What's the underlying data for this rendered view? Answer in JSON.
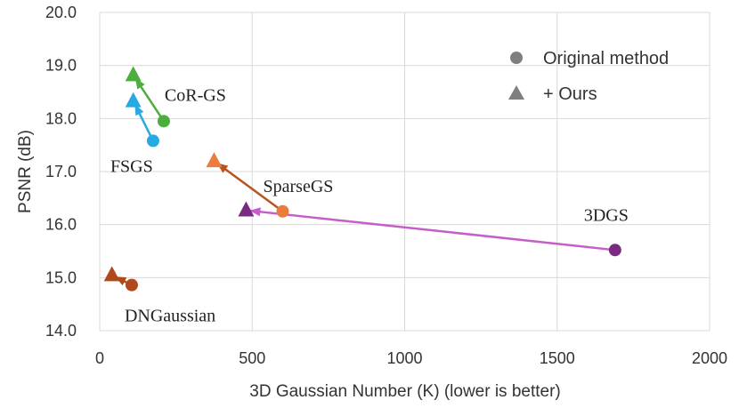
{
  "chart_data": {
    "type": "scatter",
    "title": "",
    "xlabel": "3D Gaussian Number (K) (lower is better)",
    "ylabel": "PSNR (dB)",
    "xlim": [
      0,
      2000
    ],
    "ylim": [
      14.0,
      20.0
    ],
    "x_ticks": [
      "0",
      "500",
      "1000",
      "1500",
      "2000"
    ],
    "y_ticks": [
      "14.0",
      "15.0",
      "16.0",
      "17.0",
      "18.0",
      "19.0",
      "20.0"
    ],
    "grid": true,
    "legend_position": "top-right",
    "legend": [
      {
        "label": "Original method",
        "marker": "circle"
      },
      {
        "label": "+ Ours",
        "marker": "triangle"
      }
    ],
    "series": [
      {
        "name": "3DGS",
        "color": "#7b2a82",
        "line_color": "#c55ec9",
        "original": {
          "x": 1690,
          "y": 15.52
        },
        "ours": {
          "x": 480,
          "y": 16.27
        }
      },
      {
        "name": "SparseGS",
        "color": "#ea7c3f",
        "line_color": "#b9541f",
        "original": {
          "x": 600,
          "y": 16.25
        },
        "ours": {
          "x": 375,
          "y": 17.2
        }
      },
      {
        "name": "FSGS",
        "color": "#27a9e1",
        "line_color": "#27a9e1",
        "original": {
          "x": 175,
          "y": 17.58
        },
        "ours": {
          "x": 110,
          "y": 18.33
        }
      },
      {
        "name": "CoR-GS",
        "color": "#4cae3c",
        "line_color": "#4cae3c",
        "original": {
          "x": 210,
          "y": 17.95
        },
        "ours": {
          "x": 110,
          "y": 18.82
        }
      },
      {
        "name": "DNGaussian",
        "color": "#b04a1d",
        "line_color": "#b04a1d",
        "original": {
          "x": 105,
          "y": 14.86
        },
        "ours": {
          "x": 40,
          "y": 15.05
        }
      }
    ]
  }
}
